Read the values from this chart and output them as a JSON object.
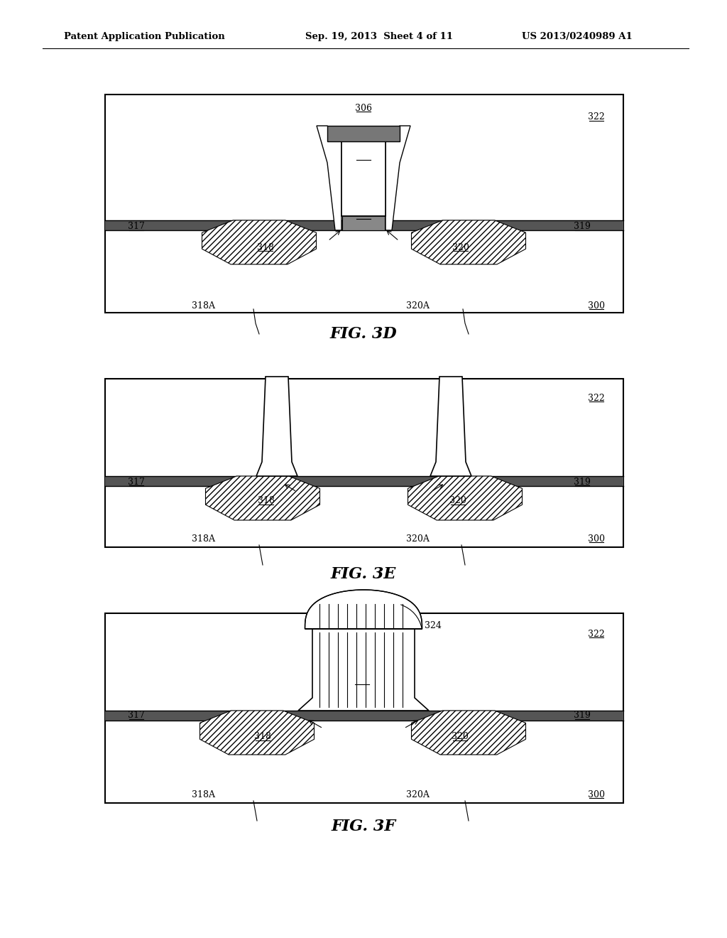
{
  "header_left": "Patent Application Publication",
  "header_center": "Sep. 19, 2013  Sheet 4 of 11",
  "header_right": "US 2013/0240989 A1",
  "bg_color": "#ffffff"
}
